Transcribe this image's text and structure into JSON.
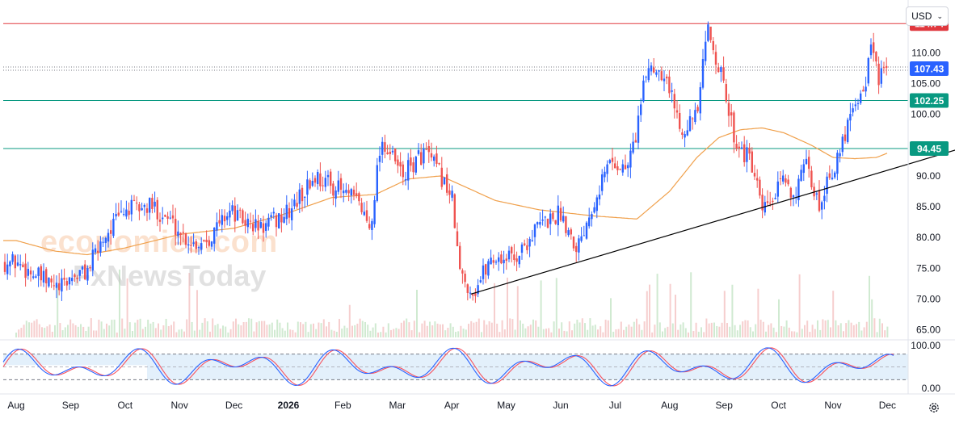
{
  "toolbar": {
    "currency": "USD"
  },
  "watermark": {
    "line1": "economies.com",
    "line2": "FxNewsToday"
  },
  "price_tags": [
    {
      "label": "114.74",
      "value": 114.74,
      "color": "#e0383e"
    },
    {
      "label": "107.43",
      "value": 107.43,
      "color": "#2962ff"
    },
    {
      "label": "102.25",
      "value": 102.25,
      "color": "#089981"
    },
    {
      "label": "94.45",
      "value": 94.45,
      "color": "#089981"
    }
  ],
  "colors": {
    "up": "#2962ff",
    "down": "#ef5350",
    "ma": "#f0a04b",
    "trendline": "#000000",
    "stoch_k": "#2962ff",
    "stoch_d": "#f7525f",
    "stoch_band": "#e3f0fb",
    "resistance": "#e0383e",
    "support": "#089981"
  },
  "chart_data": [
    {
      "type": "candlestick",
      "y_axis_ticks": [
        "110.00",
        "105.00",
        "100.00",
        "95.00",
        "90.00",
        "85.00",
        "80.00",
        "75.00",
        "70.00",
        "65.00"
      ],
      "ylim": [
        63.5,
        117.0
      ],
      "x_axis_ticks": [
        "Aug",
        "Sep",
        "Oct",
        "Nov",
        "Dec",
        "2026",
        "Feb",
        "Mar",
        "Apr",
        "May",
        "Jun",
        "Jul",
        "Aug",
        "Sep",
        "Oct",
        "Nov",
        "Dec"
      ],
      "close_path": [
        {
          "t": 0.0,
          "v": 76.0
        },
        {
          "t": 0.5,
          "v": 73.0
        },
        {
          "t": 0.8,
          "v": 71.5
        },
        {
          "t": 1.0,
          "v": 73.5
        },
        {
          "t": 1.3,
          "v": 74.5
        },
        {
          "t": 1.6,
          "v": 80.0
        },
        {
          "t": 2.0,
          "v": 84.5
        },
        {
          "t": 2.5,
          "v": 85.0
        },
        {
          "t": 2.8,
          "v": 83.0
        },
        {
          "t": 3.1,
          "v": 80.0
        },
        {
          "t": 3.3,
          "v": 79.0
        },
        {
          "t": 3.6,
          "v": 80.5
        },
        {
          "t": 3.9,
          "v": 84.5
        },
        {
          "t": 4.2,
          "v": 82.5
        },
        {
          "t": 4.5,
          "v": 81.5
        },
        {
          "t": 5.0,
          "v": 84.0
        },
        {
          "t": 5.5,
          "v": 90.0
        },
        {
          "t": 5.9,
          "v": 88.0
        },
        {
          "t": 6.3,
          "v": 85.5
        },
        {
          "t": 6.5,
          "v": 81.5
        },
        {
          "t": 6.7,
          "v": 96.0
        },
        {
          "t": 7.1,
          "v": 90.0
        },
        {
          "t": 7.5,
          "v": 94.0
        },
        {
          "t": 7.8,
          "v": 90.0
        },
        {
          "t": 8.0,
          "v": 86.5
        },
        {
          "t": 8.15,
          "v": 74.0
        },
        {
          "t": 8.4,
          "v": 71.0
        },
        {
          "t": 8.7,
          "v": 76.5
        },
        {
          "t": 9.2,
          "v": 77.0
        },
        {
          "t": 9.6,
          "v": 82.0
        },
        {
          "t": 10.0,
          "v": 84.0
        },
        {
          "t": 10.3,
          "v": 78.5
        },
        {
          "t": 10.6,
          "v": 86.0
        },
        {
          "t": 10.9,
          "v": 92.5
        },
        {
          "t": 11.2,
          "v": 91.0
        },
        {
          "t": 11.35,
          "v": 95.5
        },
        {
          "t": 11.6,
          "v": 108.0
        },
        {
          "t": 11.9,
          "v": 107.0
        },
        {
          "t": 12.2,
          "v": 98.0
        },
        {
          "t": 12.5,
          "v": 99.5
        },
        {
          "t": 12.7,
          "v": 114.0
        },
        {
          "t": 12.9,
          "v": 108.0
        },
        {
          "t": 13.2,
          "v": 96.0
        },
        {
          "t": 13.5,
          "v": 92.0
        },
        {
          "t": 13.7,
          "v": 84.0
        },
        {
          "t": 13.9,
          "v": 86.0
        },
        {
          "t": 14.1,
          "v": 89.5
        },
        {
          "t": 14.3,
          "v": 87.0
        },
        {
          "t": 14.5,
          "v": 91.5
        },
        {
          "t": 14.75,
          "v": 85.0
        },
        {
          "t": 14.9,
          "v": 90.0
        },
        {
          "t": 15.1,
          "v": 92.5
        },
        {
          "t": 15.35,
          "v": 102.0
        },
        {
          "t": 15.55,
          "v": 103.5
        },
        {
          "t": 15.7,
          "v": 110.5
        },
        {
          "t": 15.85,
          "v": 106.0
        },
        {
          "t": 16.0,
          "v": 107.2
        }
      ],
      "moving_average": [
        {
          "t": 0.0,
          "v": 79.5
        },
        {
          "t": 0.7,
          "v": 77.8
        },
        {
          "t": 1.3,
          "v": 77.2
        },
        {
          "t": 2.0,
          "v": 78.3
        },
        {
          "t": 3.0,
          "v": 80.5
        },
        {
          "t": 4.0,
          "v": 81.5
        },
        {
          "t": 5.0,
          "v": 84.0
        },
        {
          "t": 5.8,
          "v": 86.5
        },
        {
          "t": 6.6,
          "v": 87.0
        },
        {
          "t": 7.2,
          "v": 89.5
        },
        {
          "t": 7.8,
          "v": 90.0
        },
        {
          "t": 8.3,
          "v": 88.0
        },
        {
          "t": 8.8,
          "v": 86.0
        },
        {
          "t": 9.6,
          "v": 84.5
        },
        {
          "t": 10.6,
          "v": 83.5
        },
        {
          "t": 11.4,
          "v": 83.0
        },
        {
          "t": 12.0,
          "v": 87.5
        },
        {
          "t": 12.5,
          "v": 93.0
        },
        {
          "t": 12.9,
          "v": 96.2
        },
        {
          "t": 13.3,
          "v": 97.5
        },
        {
          "t": 13.7,
          "v": 97.8
        },
        {
          "t": 14.1,
          "v": 97.0
        },
        {
          "t": 14.6,
          "v": 95.0
        },
        {
          "t": 15.0,
          "v": 93.0
        },
        {
          "t": 15.4,
          "v": 92.8
        },
        {
          "t": 15.8,
          "v": 93.0
        },
        {
          "t": 16.0,
          "v": 93.7
        }
      ],
      "horizontal_levels": [
        114.74,
        102.25,
        94.45,
        107.43
      ],
      "trendline": [
        {
          "t": 8.35,
          "v": 70.8
        },
        {
          "t": 18.2,
          "v": 96.7
        }
      ],
      "volume_ylim": [
        0,
        100
      ],
      "series": [
        {
          "name": "",
          "pane": "stochastic",
          "ylim": [
            0,
            100
          ],
          "levels": [
            80,
            20
          ]
        }
      ]
    }
  ],
  "stoch_axis": {
    "top": "100.00",
    "bottom": "0.00"
  }
}
